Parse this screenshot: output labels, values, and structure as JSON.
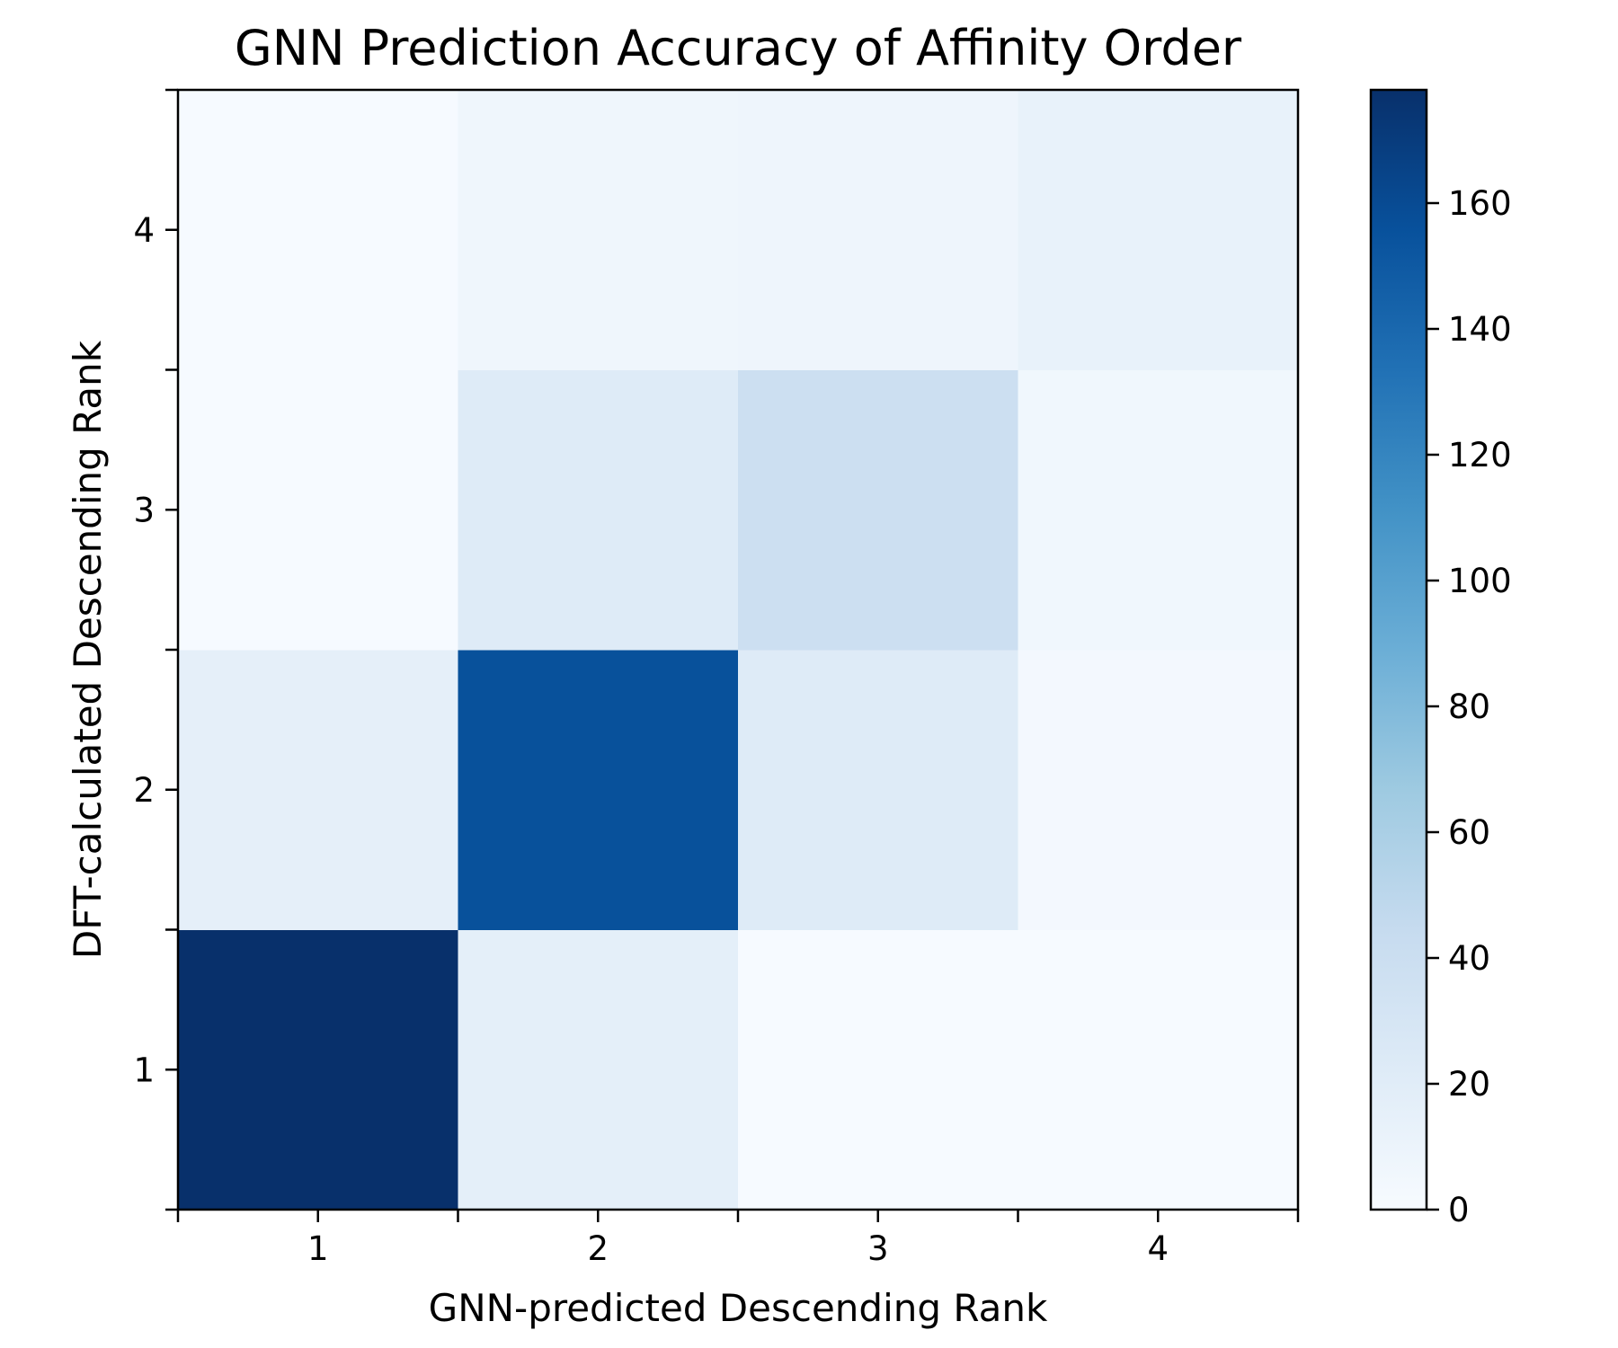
{
  "chart_data": {
    "type": "heatmap",
    "title": "GNN Prediction Accuracy of Affinity Order",
    "xlabel": "GNN-predicted Descending Rank",
    "ylabel": "DFT-calculated Descending Rank",
    "x_categories": [
      "1",
      "2",
      "3",
      "4"
    ],
    "y_categories": [
      "1",
      "2",
      "3",
      "4"
    ],
    "rows": [
      {
        "y": "1",
        "values": [
          178,
          17,
          1,
          1
        ]
      },
      {
        "y": "2",
        "values": [
          16,
          156,
          22,
          4
        ]
      },
      {
        "y": "3",
        "values": [
          1,
          22,
          39,
          6
        ]
      },
      {
        "y": "4",
        "values": [
          1,
          7,
          8,
          13
        ]
      }
    ],
    "colormap": "Blues",
    "color_range": [
      0,
      178
    ],
    "colorbar_ticks": [
      0,
      20,
      40,
      60,
      80,
      100,
      120,
      140,
      160
    ],
    "colorbar_tick_labels": [
      "0",
      "20",
      "40",
      "60",
      "80",
      "100",
      "120",
      "140",
      "160"
    ],
    "grid": false,
    "colorbar_position": "right"
  }
}
